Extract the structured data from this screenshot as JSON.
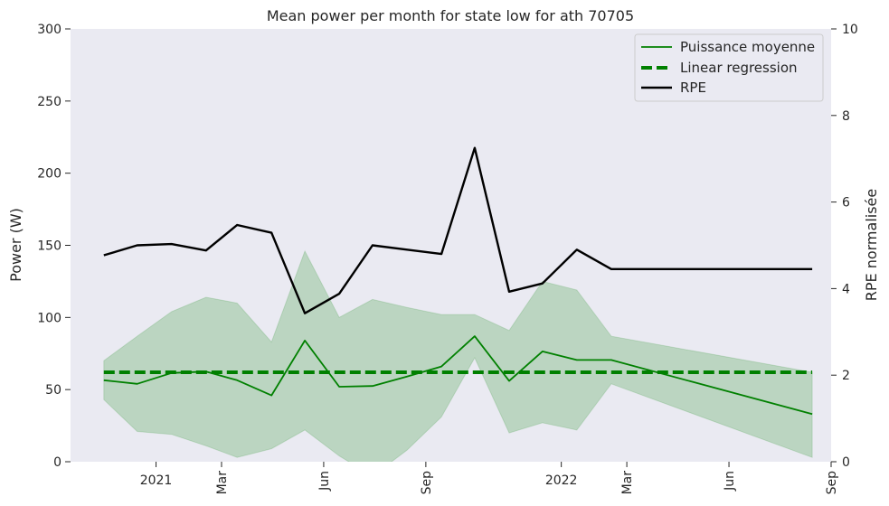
{
  "chart_data": {
    "type": "line",
    "title": "Mean power per month for state low for ath 70705",
    "ylabel_left": "Power (W)",
    "ylabel_right": "RPE normalisée",
    "ylim_left": [
      0,
      300
    ],
    "ylim_right": [
      0,
      10
    ],
    "yticks_left": [
      0,
      50,
      100,
      150,
      200,
      250,
      300
    ],
    "yticks_right": [
      0,
      2,
      4,
      6,
      8,
      10
    ],
    "x_is_date": true,
    "xlim": [
      "2020-10-16",
      "2022-09-01"
    ],
    "xticks": [
      {
        "date": "2021-01-01",
        "label": "2021",
        "rotated": false
      },
      {
        "date": "2021-03-01",
        "label": "Mar",
        "rotated": true
      },
      {
        "date": "2021-06-01",
        "label": "Jun",
        "rotated": true
      },
      {
        "date": "2021-09-01",
        "label": "Sep",
        "rotated": true
      },
      {
        "date": "2022-01-01",
        "label": "2022",
        "rotated": false
      },
      {
        "date": "2022-03-01",
        "label": "Mar",
        "rotated": true
      },
      {
        "date": "2022-06-01",
        "label": "Jun",
        "rotated": true
      },
      {
        "date": "2022-09-01",
        "label": "Sep",
        "rotated": true
      }
    ],
    "grid": false,
    "legend_position": "top-right",
    "series": [
      {
        "name": "Puissance moyenne",
        "axis": "left",
        "color": "#008000",
        "style": "solid",
        "points": [
          [
            "2020-11-15",
            56.5
          ],
          [
            "2020-12-15",
            54
          ],
          [
            "2021-01-15",
            61.5
          ],
          [
            "2021-02-15",
            62.5
          ],
          [
            "2021-03-15",
            56.5
          ],
          [
            "2021-04-15",
            46
          ],
          [
            "2021-05-15",
            84
          ],
          [
            "2021-06-15",
            52
          ],
          [
            "2021-07-15",
            52.5
          ],
          [
            "2021-08-15",
            59
          ],
          [
            "2021-09-15",
            66
          ],
          [
            "2021-10-15",
            87
          ],
          [
            "2021-11-15",
            56
          ],
          [
            "2021-12-15",
            76.5
          ],
          [
            "2022-01-15",
            70.5
          ],
          [
            "2022-02-15",
            70.5
          ],
          [
            "2022-08-15",
            33
          ]
        ]
      },
      {
        "name": "Linear regression",
        "axis": "left",
        "color": "#008000",
        "style": "dashed",
        "points": [
          [
            "2020-11-15",
            62
          ],
          [
            "2022-08-15",
            62
          ]
        ]
      },
      {
        "name": "RPE",
        "axis": "right",
        "color": "#000000",
        "style": "solid",
        "points": [
          [
            "2020-11-15",
            4.77
          ],
          [
            "2020-12-15",
            5.0
          ],
          [
            "2021-01-15",
            5.03
          ],
          [
            "2021-02-15",
            4.88
          ],
          [
            "2021-03-15",
            5.47
          ],
          [
            "2021-04-15",
            5.29
          ],
          [
            "2021-05-15",
            3.43
          ],
          [
            "2021-06-15",
            3.88
          ],
          [
            "2021-07-15",
            5.0
          ],
          [
            "2021-08-15",
            4.9
          ],
          [
            "2021-09-15",
            4.8
          ],
          [
            "2021-10-15",
            7.25
          ],
          [
            "2021-11-15",
            3.93
          ],
          [
            "2021-12-15",
            4.12
          ],
          [
            "2022-01-15",
            4.9
          ],
          [
            "2022-02-15",
            4.45
          ],
          [
            "2022-08-15",
            4.45
          ]
        ]
      }
    ],
    "band": {
      "axis": "left",
      "color": "#008000",
      "opacity": 0.2,
      "upper": [
        70,
        87,
        104,
        114,
        110,
        83,
        146,
        100,
        112.5,
        107,
        102,
        102,
        91,
        125,
        119,
        87,
        62
      ],
      "lower": [
        43,
        21,
        19,
        11,
        3,
        9,
        22,
        4,
        -10,
        8,
        31,
        72,
        20,
        27,
        22,
        54,
        3
      ]
    }
  }
}
